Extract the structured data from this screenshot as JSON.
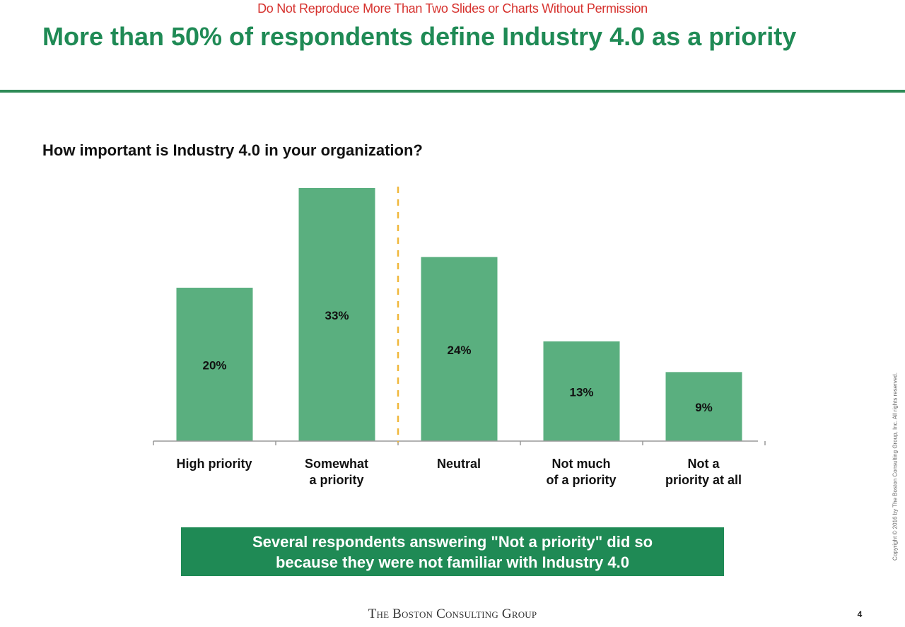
{
  "header": {
    "warning": "Do Not Reproduce More Than Two Slides or Charts Without Permission",
    "title": "More than 50% of respondents define Industry 4.0 as a priority",
    "title_color": "#1f8a55",
    "warning_color": "#d6322e"
  },
  "question": "How important is Industry 4.0 in your organization?",
  "chart_data": {
    "type": "bar",
    "categories": [
      "High priority",
      "Somewhat\na priority",
      "Neutral",
      "Not much\nof a priority",
      "Not a\npriority at all"
    ],
    "values": [
      20,
      33,
      24,
      13,
      9
    ],
    "value_labels": [
      "20%",
      "33%",
      "24%",
      "13%",
      "9%"
    ],
    "unit": "%",
    "title": "How important is Industry 4.0 in your organization?",
    "xlabel": "",
    "ylabel": "",
    "bar_color": "#5aaf7f",
    "divider_after_index": 1,
    "divider_color": "#f0b73a",
    "grid": false,
    "legend": "none"
  },
  "callout": {
    "text": "Several respondents answering \"Not a priority\" did so\nbecause they were not familiar with Industry 4.0",
    "color": "#1f8a55"
  },
  "footer": {
    "logo": "The Boston Consulting Group",
    "page_number": "4",
    "copyright": "Copyright © 2016 by The Boston Consulting Group, Inc. All rights reserved."
  }
}
